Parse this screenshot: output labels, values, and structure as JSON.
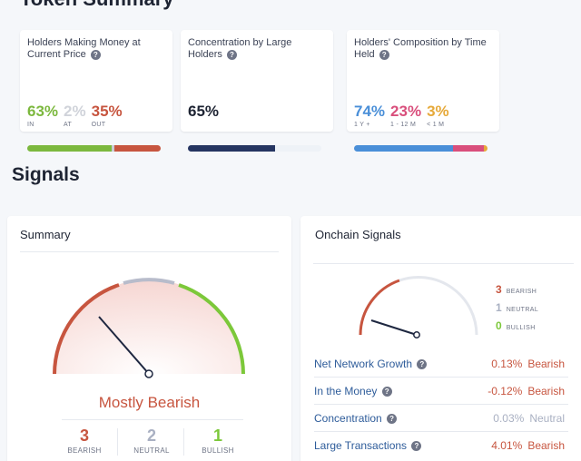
{
  "token_summary": {
    "title": "Token Summary",
    "holders_money": {
      "label": "Holders Making Money at Current Price",
      "in_pct": "63%",
      "at_pct": "2%",
      "out_pct": "35%",
      "in_label": "IN",
      "at_label": "AT",
      "out_label": "OUT",
      "split": [
        63,
        2,
        35
      ],
      "colors": {
        "in": "#7cb83e",
        "at": "#c8ccd4",
        "out": "#c7553f"
      }
    },
    "concentration": {
      "label": "Concentration by Large Holders",
      "pct": "65%",
      "fill": 65,
      "colors": {
        "fill": "#253561",
        "rest": "#eef2f7"
      }
    },
    "composition": {
      "label": "Holders' Composition by Time Held",
      "y1_pct": "74%",
      "m12_pct": "23%",
      "m1_pct": "3%",
      "y1_label": "1 Y +",
      "m12_label": "1 - 12 M",
      "m1_label": "< 1 M",
      "split": [
        74,
        23,
        3
      ],
      "colors": {
        "y1": "#4a8fd8",
        "m12": "#d94f7c",
        "m1": "#e6a93a"
      }
    }
  },
  "signals": {
    "title": "Signals",
    "summary": {
      "title": "Summary",
      "verdict": "Mostly Bearish",
      "bearish_count": "3",
      "neutral_count": "2",
      "bullish_count": "1",
      "bearish_label": "BEARISH",
      "neutral_label": "NEUTRAL",
      "bullish_label": "BULLISH",
      "colors": {
        "bearish": "#c7553f",
        "neutral": "#a9b0c2",
        "bullish": "#7cc83a"
      }
    },
    "onchain": {
      "title": "Onchain Signals",
      "bearish_count": "3",
      "neutral_count": "1",
      "bullish_count": "0",
      "bearish_label": "BEARISH",
      "neutral_label": "NEUTRAL",
      "bullish_label": "BULLISH",
      "rows": [
        {
          "name": "Net Network Growth",
          "value": "0.13%",
          "signal": "Bearish"
        },
        {
          "name": "In the Money",
          "value": "-0.12%",
          "signal": "Bearish"
        },
        {
          "name": "Concentration",
          "value": "0.03%",
          "signal": "Neutral"
        },
        {
          "name": "Large Transactions",
          "value": "4.01%",
          "signal": "Bearish"
        }
      ]
    }
  }
}
